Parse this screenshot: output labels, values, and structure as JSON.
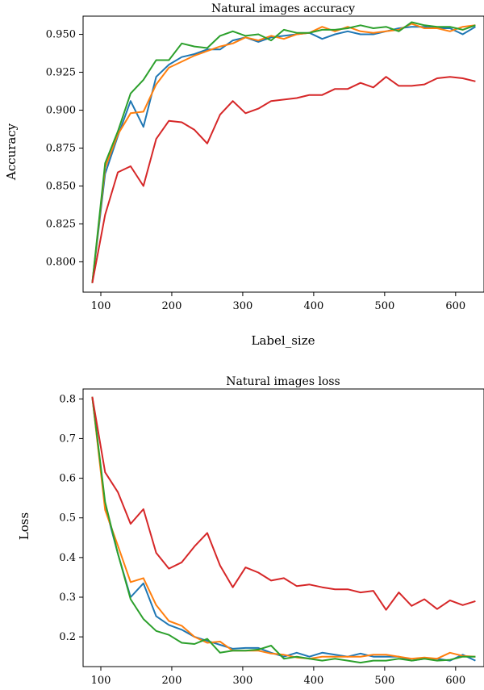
{
  "chart_data": [
    {
      "type": "line",
      "title": "Natural images accuracy",
      "xlabel": "Label_size",
      "ylabel": "Accuracy",
      "xlim": [
        75,
        640
      ],
      "ylim": [
        0.78,
        0.962
      ],
      "xticks": [
        100,
        200,
        300,
        400,
        500,
        600
      ],
      "xtick_labels": [
        "100",
        "200",
        "300",
        "400",
        "500",
        "600"
      ],
      "yticks": [
        0.8,
        0.825,
        0.85,
        0.875,
        0.9,
        0.925,
        0.95
      ],
      "ytick_labels": [
        "0.800",
        "0.825",
        "0.850",
        "0.875",
        "0.900",
        "0.925",
        "0.950"
      ],
      "grid": false,
      "x": [
        88,
        106,
        124,
        142,
        160,
        178,
        196,
        214,
        232,
        250,
        268,
        286,
        304,
        322,
        340,
        358,
        376,
        394,
        412,
        430,
        448,
        466,
        484,
        502,
        520,
        538,
        556,
        574,
        592,
        610,
        628
      ],
      "series": [
        {
          "color": "#1f77b4",
          "values": [
            0.786,
            0.858,
            0.883,
            0.906,
            0.889,
            0.922,
            0.93,
            0.935,
            0.937,
            0.94,
            0.94,
            0.946,
            0.948,
            0.945,
            0.948,
            0.949,
            0.95,
            0.951,
            0.947,
            0.95,
            0.952,
            0.95,
            0.95,
            0.952,
            0.954,
            0.955,
            0.955,
            0.954,
            0.954,
            0.95,
            0.955
          ]
        },
        {
          "color": "#ff7f0e",
          "values": [
            0.786,
            0.862,
            0.884,
            0.898,
            0.899,
            0.917,
            0.928,
            0.932,
            0.936,
            0.939,
            0.942,
            0.944,
            0.948,
            0.946,
            0.949,
            0.947,
            0.95,
            0.951,
            0.955,
            0.952,
            0.955,
            0.952,
            0.951,
            0.952,
            0.953,
            0.957,
            0.954,
            0.954,
            0.952,
            0.955,
            0.956
          ]
        },
        {
          "color": "#2ca02c",
          "values": [
            0.786,
            0.865,
            0.886,
            0.911,
            0.92,
            0.933,
            0.933,
            0.944,
            0.942,
            0.941,
            0.949,
            0.952,
            0.949,
            0.95,
            0.946,
            0.953,
            0.951,
            0.951,
            0.953,
            0.953,
            0.954,
            0.956,
            0.954,
            0.955,
            0.952,
            0.958,
            0.956,
            0.955,
            0.955,
            0.953,
            0.956
          ]
        },
        {
          "color": "#d62728",
          "values": [
            0.786,
            0.831,
            0.859,
            0.863,
            0.85,
            0.881,
            0.893,
            0.892,
            0.887,
            0.878,
            0.897,
            0.906,
            0.898,
            0.901,
            0.906,
            0.907,
            0.908,
            0.91,
            0.91,
            0.914,
            0.914,
            0.918,
            0.915,
            0.922,
            0.916,
            0.916,
            0.917,
            0.921,
            0.922,
            0.921,
            0.919
          ]
        }
      ]
    },
    {
      "type": "line",
      "title": "Natural images loss",
      "xlabel": "",
      "ylabel": "Loss",
      "xlim": [
        75,
        640
      ],
      "ylim": [
        0.125,
        0.825
      ],
      "xticks": [
        100,
        200,
        300,
        400,
        500,
        600
      ],
      "xtick_labels": [
        "100",
        "200",
        "300",
        "400",
        "500",
        "600"
      ],
      "yticks": [
        0.2,
        0.3,
        0.4,
        0.5,
        0.6,
        0.7,
        0.8
      ],
      "ytick_labels": [
        "0.2",
        "0.3",
        "0.4",
        "0.5",
        "0.6",
        "0.7",
        "0.8"
      ],
      "grid": false,
      "x": [
        88,
        106,
        124,
        142,
        160,
        178,
        196,
        214,
        232,
        250,
        268,
        286,
        304,
        322,
        340,
        358,
        376,
        394,
        412,
        430,
        448,
        466,
        484,
        502,
        520,
        538,
        556,
        574,
        592,
        610,
        628
      ],
      "series": [
        {
          "color": "#1f77b4",
          "values": [
            0.805,
            0.53,
            0.41,
            0.3,
            0.335,
            0.252,
            0.23,
            0.218,
            0.2,
            0.19,
            0.18,
            0.17,
            0.172,
            0.172,
            0.16,
            0.15,
            0.16,
            0.15,
            0.16,
            0.155,
            0.15,
            0.158,
            0.15,
            0.15,
            0.15,
            0.14,
            0.145,
            0.145,
            0.14,
            0.155,
            0.14
          ]
        },
        {
          "color": "#ff7f0e",
          "values": [
            0.805,
            0.52,
            0.43,
            0.338,
            0.348,
            0.28,
            0.24,
            0.228,
            0.2,
            0.185,
            0.188,
            0.165,
            0.165,
            0.165,
            0.158,
            0.155,
            0.148,
            0.145,
            0.15,
            0.15,
            0.15,
            0.15,
            0.155,
            0.155,
            0.15,
            0.145,
            0.148,
            0.145,
            0.16,
            0.152,
            0.15
          ]
        },
        {
          "color": "#2ca02c",
          "values": [
            0.805,
            0.54,
            0.41,
            0.295,
            0.245,
            0.215,
            0.205,
            0.185,
            0.182,
            0.195,
            0.16,
            0.165,
            0.165,
            0.168,
            0.178,
            0.145,
            0.15,
            0.145,
            0.14,
            0.145,
            0.14,
            0.135,
            0.14,
            0.14,
            0.145,
            0.14,
            0.145,
            0.14,
            0.142,
            0.15,
            0.15
          ]
        },
        {
          "color": "#d62728",
          "values": [
            0.805,
            0.615,
            0.565,
            0.485,
            0.522,
            0.412,
            0.372,
            0.388,
            0.428,
            0.462,
            0.38,
            0.325,
            0.375,
            0.362,
            0.342,
            0.348,
            0.328,
            0.332,
            0.325,
            0.32,
            0.32,
            0.312,
            0.316,
            0.268,
            0.312,
            0.278,
            0.295,
            0.27,
            0.292,
            0.28,
            0.29
          ]
        }
      ]
    }
  ]
}
